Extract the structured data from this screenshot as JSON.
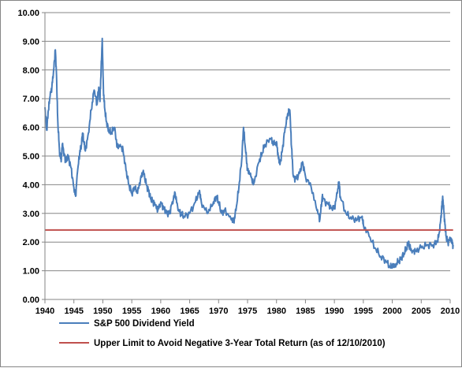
{
  "chart_data": {
    "type": "line",
    "title": "",
    "xlabel": "",
    "ylabel": "",
    "xlim": [
      1940,
      2010
    ],
    "ylim": [
      0,
      10
    ],
    "x_ticks": [
      1940,
      1945,
      1950,
      1955,
      1960,
      1965,
      1970,
      1975,
      1980,
      1985,
      1990,
      1995,
      2000,
      2005,
      2010
    ],
    "y_ticks": [
      "0.00",
      "1.00",
      "2.00",
      "3.00",
      "4.00",
      "5.00",
      "6.00",
      "7.00",
      "8.00",
      "9.00",
      "10.00"
    ],
    "grid": "horizontal",
    "legend_position": "bottom",
    "series": [
      {
        "name": "S&P 500 Dividend Yield",
        "color": "#4a7ebb",
        "x": [
          1940.0,
          1940.3,
          1940.6,
          1940.9,
          1941.2,
          1941.5,
          1941.8,
          1942.0,
          1942.2,
          1942.5,
          1942.8,
          1943.0,
          1943.3,
          1943.6,
          1944.0,
          1944.5,
          1945.0,
          1945.3,
          1945.6,
          1946.0,
          1946.3,
          1946.5,
          1946.8,
          1947.0,
          1947.5,
          1948.0,
          1948.5,
          1949.0,
          1949.3,
          1949.5,
          1949.7,
          1949.9,
          1950.1,
          1950.3,
          1950.6,
          1951.0,
          1951.5,
          1952.0,
          1952.5,
          1953.0,
          1953.5,
          1954.0,
          1954.5,
          1955.0,
          1955.5,
          1956.0,
          1956.5,
          1957.0,
          1957.5,
          1957.9,
          1958.3,
          1958.7,
          1959.0,
          1959.5,
          1960.0,
          1960.5,
          1961.0,
          1961.5,
          1962.0,
          1962.5,
          1963.0,
          1963.5,
          1964.0,
          1965.0,
          1966.0,
          1966.7,
          1967.0,
          1968.0,
          1969.0,
          1969.6,
          1970.0,
          1970.5,
          1971.0,
          1972.0,
          1972.6,
          1973.0,
          1973.5,
          1974.0,
          1974.3,
          1974.7,
          1975.0,
          1975.5,
          1976.0,
          1977.0,
          1977.5,
          1978.0,
          1979.0,
          1979.5,
          1980.0,
          1980.3,
          1980.6,
          1981.0,
          1981.5,
          1982.0,
          1982.3,
          1982.6,
          1982.9,
          1983.3,
          1984.0,
          1984.5,
          1985.0,
          1986.0,
          1987.0,
          1987.5,
          1987.9,
          1988.0,
          1989.0,
          1989.5,
          1990.0,
          1990.5,
          1990.8,
          1991.0,
          1992.0,
          1993.0,
          1994.0,
          1994.8,
          1995.0,
          1996.0,
          1997.0,
          1998.0,
          1999.0,
          1999.7,
          2000.0,
          2000.5,
          2001.0,
          2001.5,
          2002.0,
          2002.5,
          2002.8,
          2003.0,
          2003.5,
          2004.0,
          2005.0,
          2006.0,
          2007.0,
          2007.8,
          2008.2,
          2008.5,
          2008.7,
          2008.9,
          2009.1,
          2009.3,
          2009.6,
          2010.0,
          2010.3,
          2010.5
        ],
        "values": [
          6.7,
          5.9,
          6.6,
          7.1,
          7.4,
          8.0,
          8.7,
          7.8,
          6.3,
          5.2,
          4.8,
          5.4,
          5.1,
          4.8,
          5.0,
          4.6,
          3.9,
          3.6,
          4.4,
          5.1,
          5.4,
          5.8,
          5.4,
          5.2,
          5.8,
          6.6,
          7.3,
          6.8,
          7.4,
          6.9,
          8.0,
          9.1,
          7.3,
          6.7,
          6.2,
          5.9,
          5.8,
          6.0,
          5.3,
          5.4,
          5.2,
          4.5,
          4.0,
          3.7,
          3.9,
          3.7,
          4.2,
          4.5,
          4.0,
          3.8,
          3.5,
          3.4,
          3.3,
          3.1,
          3.4,
          3.2,
          3.0,
          3.0,
          3.4,
          3.7,
          3.1,
          3.0,
          2.9,
          3.0,
          3.4,
          3.8,
          3.4,
          3.0,
          3.3,
          3.6,
          3.4,
          3.0,
          3.1,
          2.9,
          2.7,
          3.1,
          3.9,
          4.9,
          6.0,
          5.1,
          4.5,
          4.4,
          4.0,
          4.8,
          5.1,
          5.4,
          5.6,
          5.4,
          5.5,
          5.0,
          4.7,
          5.2,
          6.0,
          6.5,
          6.6,
          5.3,
          4.3,
          4.2,
          4.4,
          4.8,
          4.3,
          3.9,
          3.1,
          2.8,
          3.6,
          3.5,
          3.3,
          3.2,
          3.2,
          3.7,
          4.1,
          3.6,
          3.0,
          2.8,
          2.8,
          2.9,
          2.6,
          2.2,
          1.8,
          1.5,
          1.3,
          1.1,
          1.2,
          1.2,
          1.3,
          1.4,
          1.6,
          1.8,
          2.0,
          1.8,
          1.7,
          1.7,
          1.8,
          1.9,
          1.9,
          2.0,
          2.4,
          3.1,
          3.6,
          3.1,
          2.6,
          2.2,
          2.0,
          2.1,
          2.0,
          1.9
        ]
      },
      {
        "name": "Upper Limit to Avoid Negative 3-Year Total Return (as of 12/10/2010)",
        "color": "#c0504d",
        "x": [
          1940,
          2010.5
        ],
        "values": [
          2.42,
          2.42
        ]
      }
    ]
  }
}
